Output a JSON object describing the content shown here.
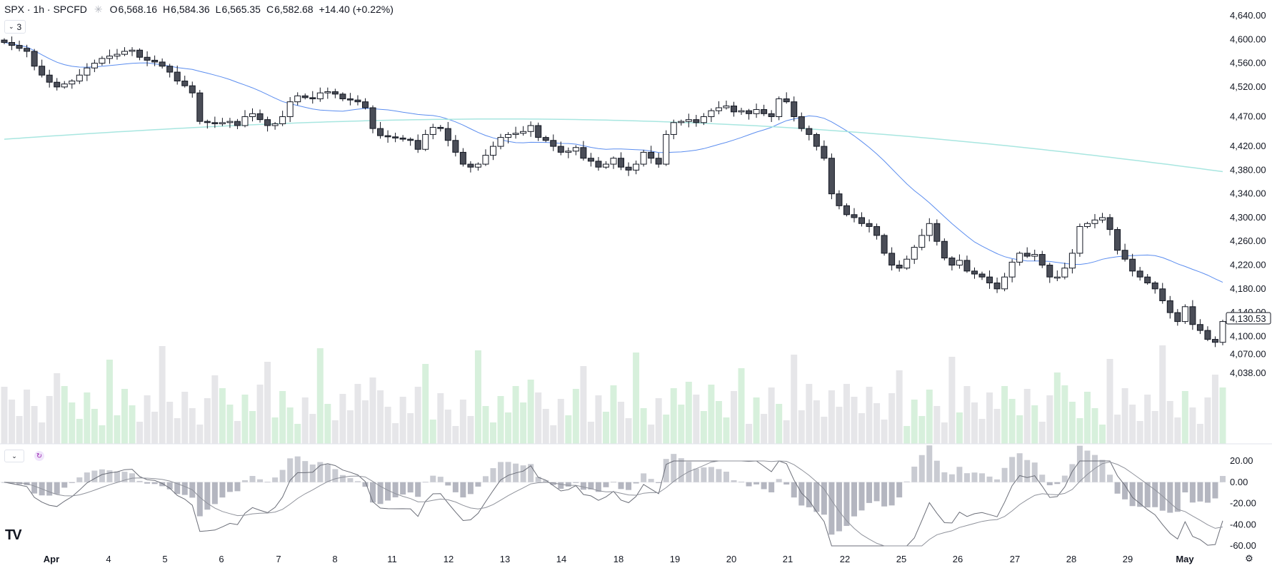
{
  "header": {
    "symbol": "SPX · 1h · SPCFD",
    "open_label": "O",
    "open": "6,568.16",
    "high_label": "H",
    "high": "6,584.36",
    "low_label": "L",
    "low": "6,565.35",
    "close_label": "C",
    "close": "6,582.68",
    "change": "+14.40 (+0.22%)"
  },
  "indicators_button": {
    "count": "3"
  },
  "price_label": "4,130.53",
  "chart_data": {
    "type": "candlestick",
    "price_axis_ticks": [
      "4,640.00",
      "4,600.00",
      "4,560.00",
      "4,520.00",
      "4,470.00",
      "4,420.00",
      "4,380.00",
      "4,340.00",
      "4,300.00",
      "4,260.00",
      "4,220.00",
      "4,180.00",
      "4,140.00",
      "4,100.00",
      "4,070.00",
      "4,038.00"
    ],
    "osc_axis_ticks": [
      "20.00",
      "0.00",
      "-20.00",
      "-40.00",
      "-60.00"
    ],
    "time_labels": [
      "Apr",
      "4",
      "5",
      "6",
      "7",
      "8",
      "11",
      "12",
      "13",
      "14",
      "18",
      "19",
      "20",
      "21",
      "22",
      "25",
      "26",
      "27",
      "28",
      "29",
      "May"
    ],
    "last_price": 4130.53,
    "close_path": [
      4595,
      4590,
      4585,
      4580,
      4555,
      4540,
      4528,
      4520,
      4525,
      4530,
      4540,
      4552,
      4560,
      4568,
      4572,
      4575,
      4580,
      4582,
      4570,
      4565,
      4562,
      4555,
      4545,
      4530,
      4522,
      4510,
      4462,
      4460,
      4458,
      4460,
      4462,
      4455,
      4470,
      4475,
      4465,
      4455,
      4458,
      4470,
      4495,
      4505,
      4502,
      4500,
      4510,
      4512,
      4508,
      4500,
      4498,
      4495,
      4485,
      4450,
      4438,
      4436,
      4434,
      4432,
      4430,
      4415,
      4440,
      4452,
      4450,
      4430,
      4410,
      4390,
      4385,
      4390,
      4405,
      4420,
      4435,
      4440,
      4442,
      4445,
      4455,
      4435,
      4430,
      4420,
      4410,
      4412,
      4418,
      4400,
      4395,
      4385,
      4390,
      4400,
      4385,
      4380,
      4390,
      4410,
      4400,
      4390,
      4440,
      4460,
      4462,
      4465,
      4460,
      4470,
      4480,
      4485,
      4488,
      4478,
      4480,
      4475,
      4482,
      4475,
      4470,
      4500,
      4495,
      4470,
      4450,
      4440,
      4420,
      4400,
      4340,
      4320,
      4305,
      4300,
      4290,
      4285,
      4270,
      4240,
      4220,
      4215,
      4230,
      4250,
      4270,
      4290,
      4260,
      4232,
      4220,
      4228,
      4210,
      4205,
      4200,
      4190,
      4180,
      4200,
      4225,
      4240,
      4235,
      4238,
      4220,
      4200,
      4200,
      4215,
      4240,
      4285,
      4290,
      4296,
      4300,
      4280,
      4245,
      4230,
      4210,
      4200,
      4190,
      4180,
      4160,
      4140,
      4125,
      4150,
      4120,
      4110,
      4095,
      4090,
      4125
    ],
    "sma_short_color": "#5b8def",
    "sma_long_color": "#a8e6e0",
    "volume_up_color": "#d7f0dc",
    "volume_down_color": "#e6e6e9"
  }
}
